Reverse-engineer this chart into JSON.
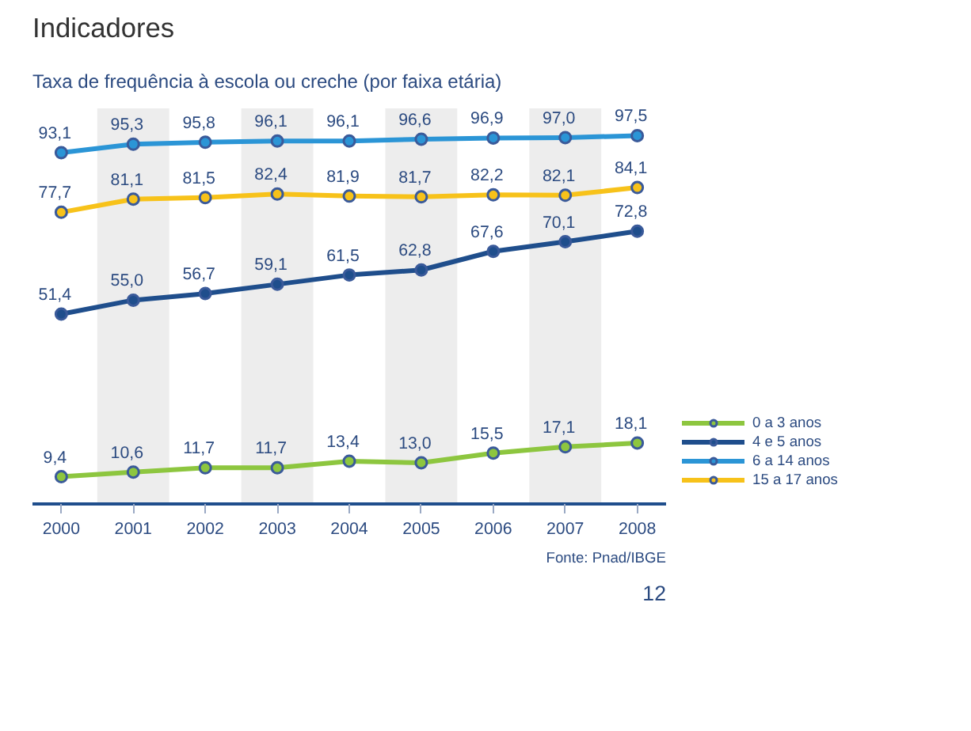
{
  "chart_data": {
    "type": "line",
    "title": "Indicadores",
    "subtitle": "Taxa de frequência à escola ou creche (por faixa etária)",
    "x": [
      2000,
      2001,
      2002,
      2003,
      2004,
      2005,
      2006,
      2007,
      2008
    ],
    "xlim": [
      1999.6,
      2008.4
    ],
    "xticks": [
      2000,
      2001,
      2002,
      2003,
      2004,
      2005,
      2006,
      2007,
      2008
    ],
    "tick_labels": "x",
    "grid": false,
    "legend": "right",
    "marker": "circle",
    "line_style": "solid",
    "series": [
      {
        "name": "0 a 3 anos",
        "color": "#8dc63f",
        "values": [
          9.4,
          10.6,
          11.7,
          11.7,
          13.4,
          13.0,
          15.5,
          17.1,
          18.1
        ],
        "value_labels": [
          "9,4",
          "10,6",
          "11,7",
          "11,7",
          "13,4",
          "13,0",
          "15,5",
          "17,1",
          "18,1"
        ]
      },
      {
        "name": "4 e 5 anos",
        "color": "#1f4e8c",
        "values": [
          51.4,
          55.0,
          56.7,
          59.1,
          61.5,
          62.8,
          67.6,
          70.1,
          72.8
        ],
        "value_labels": [
          "51,4",
          "55,0",
          "56,7",
          "59,1",
          "61,5",
          "62,8",
          "67,6",
          "70,1",
          "72,8"
        ]
      },
      {
        "name": "6 a 14 anos",
        "color": "#2b95d6",
        "values": [
          93.1,
          95.3,
          95.8,
          96.1,
          96.1,
          96.6,
          96.9,
          97.0,
          97.5
        ],
        "value_labels": [
          "93,1",
          "95,3",
          "95,8",
          "96,1",
          "96,1",
          "96,6",
          "96,9",
          "97,0",
          "97,5"
        ]
      },
      {
        "name": "15 a 17 anos",
        "color": "#f7c21a",
        "values": [
          77.7,
          81.1,
          81.5,
          82.4,
          81.9,
          81.7,
          82.2,
          82.1,
          84.1
        ],
        "value_labels": [
          "77,7",
          "81,1",
          "81,5",
          "82,4",
          "81,9",
          "81,7",
          "82,2",
          "82,1",
          "84,1"
        ]
      }
    ],
    "bands": [
      {
        "axis": "x",
        "from": 2000.5,
        "to": 2001.5,
        "color": "#ededed"
      },
      {
        "axis": "x",
        "from": 2002.5,
        "to": 2003.5,
        "color": "#ededed"
      },
      {
        "axis": "x",
        "from": 2004.5,
        "to": 2005.5,
        "color": "#ededed"
      },
      {
        "axis": "x",
        "from": 2006.5,
        "to": 2007.5,
        "color": "#ededed"
      }
    ],
    "annotations": [
      "Fonte: Pnad/IBGE",
      "12"
    ]
  }
}
